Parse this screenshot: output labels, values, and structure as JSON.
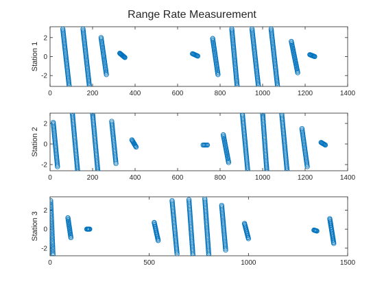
{
  "figure": {
    "title": "Range Rate Measurement",
    "marker_color": "#0072BD"
  },
  "chart_data": [
    {
      "type": "scatter",
      "ylabel": "Station 1",
      "xlim": [
        0,
        1400
      ],
      "ylim": [
        -3.1416,
        3.1416
      ],
      "xticks": [
        0,
        200,
        400,
        600,
        800,
        1000,
        1200,
        1400
      ],
      "yticks": [
        -2,
        0,
        2
      ],
      "grid": false,
      "marker": "circle-open",
      "clusters": [
        {
          "kind": "sweep",
          "x_start": 90,
          "x_end": 60,
          "y_start": -3.1,
          "y_end": 2.9,
          "n": 44
        },
        {
          "kind": "sweep",
          "x_start": 185,
          "x_end": 155,
          "y_start": -3.1,
          "y_end": 2.9,
          "n": 44
        },
        {
          "kind": "sweep",
          "x_start": 265,
          "x_end": 240,
          "y_start": -1.9,
          "y_end": 2.0,
          "n": 30
        },
        {
          "kind": "blob",
          "x_start": 328,
          "x_end": 352,
          "y_start": 0.35,
          "y_end": -0.1,
          "n": 12
        },
        {
          "kind": "blob",
          "x_start": 670,
          "x_end": 695,
          "y_start": 0.3,
          "y_end": 0.05,
          "n": 9
        },
        {
          "kind": "sweep",
          "x_start": 790,
          "x_end": 765,
          "y_start": -1.9,
          "y_end": 1.9,
          "n": 30
        },
        {
          "kind": "sweep",
          "x_start": 880,
          "x_end": 855,
          "y_start": -3.1,
          "y_end": 2.9,
          "n": 44
        },
        {
          "kind": "sweep",
          "x_start": 980,
          "x_end": 950,
          "y_start": -3.1,
          "y_end": 2.9,
          "n": 44
        },
        {
          "kind": "sweep",
          "x_start": 1070,
          "x_end": 1040,
          "y_start": -3.1,
          "y_end": 2.9,
          "n": 44
        },
        {
          "kind": "sweep",
          "x_start": 1165,
          "x_end": 1135,
          "y_start": -1.7,
          "y_end": 1.6,
          "n": 28
        },
        {
          "kind": "blob",
          "x_start": 1222,
          "x_end": 1245,
          "y_start": 0.2,
          "y_end": 0.0,
          "n": 9
        }
      ]
    },
    {
      "type": "scatter",
      "ylabel": "Station 2",
      "xlim": [
        0,
        1400
      ],
      "ylim": [
        -2.6,
        3.0
      ],
      "xticks": [
        0,
        200,
        400,
        600,
        800,
        1000,
        1200,
        1400
      ],
      "yticks": [
        -2,
        0,
        2
      ],
      "grid": false,
      "marker": "circle-open",
      "clusters": [
        {
          "kind": "sweep",
          "x_start": 35,
          "x_end": 15,
          "y_start": -2.2,
          "y_end": 2.1,
          "n": 34
        },
        {
          "kind": "sweep",
          "x_start": 130,
          "x_end": 105,
          "y_start": -2.7,
          "y_end": 3.0,
          "n": 42
        },
        {
          "kind": "sweep",
          "x_start": 225,
          "x_end": 200,
          "y_start": -2.7,
          "y_end": 3.0,
          "n": 42
        },
        {
          "kind": "sweep",
          "x_start": 310,
          "x_end": 290,
          "y_start": -1.9,
          "y_end": 2.2,
          "n": 30
        },
        {
          "kind": "blob",
          "x_start": 385,
          "x_end": 405,
          "y_start": 0.4,
          "y_end": -0.3,
          "n": 10
        },
        {
          "kind": "blob",
          "x_start": 720,
          "x_end": 740,
          "y_start": -0.1,
          "y_end": -0.1,
          "n": 6
        },
        {
          "kind": "sweep",
          "x_start": 840,
          "x_end": 815,
          "y_start": -1.8,
          "y_end": 0.9,
          "n": 24
        },
        {
          "kind": "sweep",
          "x_start": 930,
          "x_end": 905,
          "y_start": -2.6,
          "y_end": 2.9,
          "n": 42
        },
        {
          "kind": "sweep",
          "x_start": 1020,
          "x_end": 1000,
          "y_start": -2.7,
          "y_end": 3.0,
          "n": 42
        },
        {
          "kind": "sweep",
          "x_start": 1115,
          "x_end": 1090,
          "y_start": -2.6,
          "y_end": 2.9,
          "n": 42
        },
        {
          "kind": "sweep",
          "x_start": 1210,
          "x_end": 1185,
          "y_start": -2.2,
          "y_end": 1.5,
          "n": 30
        },
        {
          "kind": "blob",
          "x_start": 1275,
          "x_end": 1295,
          "y_start": 0.15,
          "y_end": -0.1,
          "n": 8
        }
      ]
    },
    {
      "type": "scatter",
      "ylabel": "Station 3",
      "xlim": [
        0,
        1500
      ],
      "ylim": [
        -2.8,
        3.4
      ],
      "xticks": [
        0,
        500,
        1000,
        1500
      ],
      "yticks": [
        -2,
        0,
        2
      ],
      "grid": false,
      "marker": "circle-open",
      "clusters": [
        {
          "kind": "sweep",
          "x_start": 15,
          "x_end": 3,
          "y_start": -2.7,
          "y_end": 3.0,
          "n": 36
        },
        {
          "kind": "sweep",
          "x_start": 105,
          "x_end": 90,
          "y_start": -0.9,
          "y_end": 1.2,
          "n": 18
        },
        {
          "kind": "blob",
          "x_start": 185,
          "x_end": 200,
          "y_start": 0.0,
          "y_end": 0.0,
          "n": 6
        },
        {
          "kind": "sweep",
          "x_start": 545,
          "x_end": 525,
          "y_start": -1.2,
          "y_end": 0.7,
          "n": 18
        },
        {
          "kind": "sweep",
          "x_start": 640,
          "x_end": 615,
          "y_start": -2.6,
          "y_end": 3.0,
          "n": 40
        },
        {
          "kind": "sweep",
          "x_start": 720,
          "x_end": 700,
          "y_start": -2.7,
          "y_end": 3.1,
          "n": 40
        },
        {
          "kind": "sweep",
          "x_start": 800,
          "x_end": 780,
          "y_start": -2.7,
          "y_end": 3.2,
          "n": 40
        },
        {
          "kind": "sweep",
          "x_start": 885,
          "x_end": 865,
          "y_start": -2.2,
          "y_end": 2.5,
          "n": 34
        },
        {
          "kind": "sweep",
          "x_start": 1000,
          "x_end": 980,
          "y_start": -1.0,
          "y_end": 0.6,
          "n": 16
        },
        {
          "kind": "blob",
          "x_start": 1330,
          "x_end": 1345,
          "y_start": -0.1,
          "y_end": -0.2,
          "n": 6
        },
        {
          "kind": "sweep",
          "x_start": 1430,
          "x_end": 1410,
          "y_start": -1.5,
          "y_end": 1.1,
          "n": 24
        }
      ]
    }
  ]
}
